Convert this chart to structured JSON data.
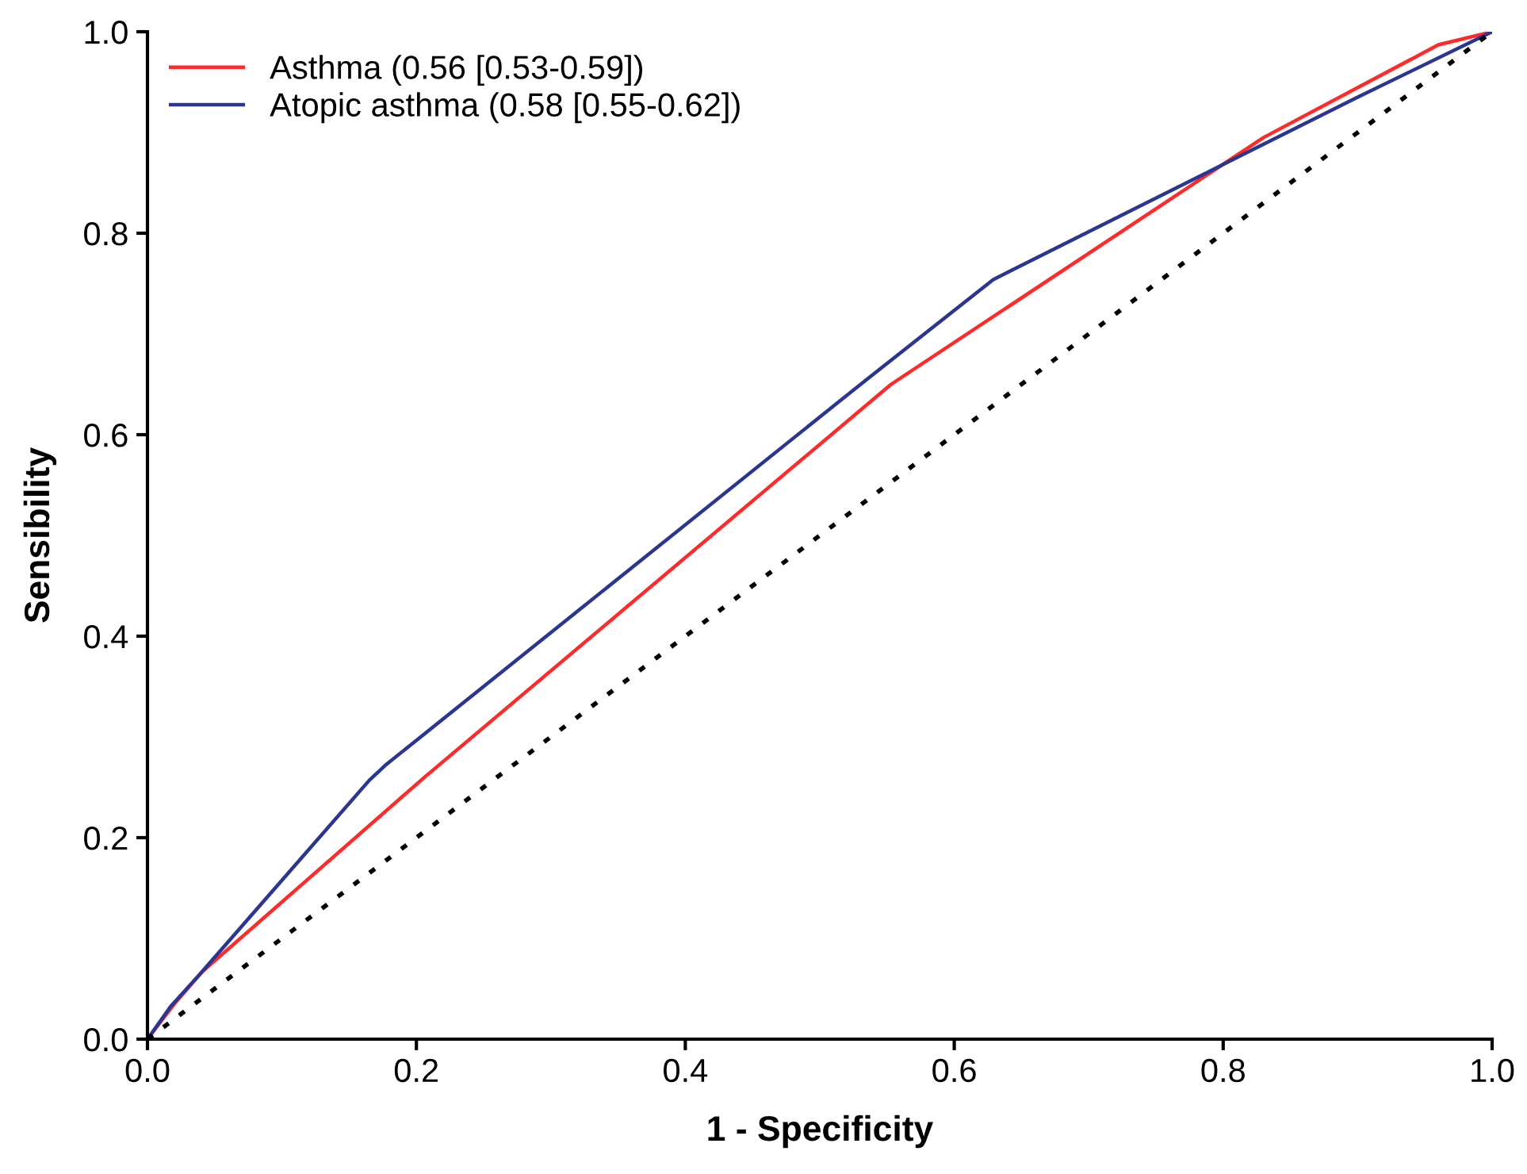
{
  "chart_data": {
    "type": "line",
    "xlabel": "1 - Specificity",
    "ylabel": "Sensibility",
    "xlim": [
      0,
      1
    ],
    "ylim": [
      0,
      1
    ],
    "xticks": [
      {
        "value": 0,
        "label": "0.0"
      },
      0.2,
      0.4,
      0.6,
      0.8,
      {
        "value": 1,
        "label": "1.0"
      }
    ],
    "yticks": [
      {
        "value": 0,
        "label": "0.0"
      },
      0.2,
      0.4,
      0.6,
      0.8,
      {
        "value": 1,
        "label": "1.0"
      }
    ],
    "grid": false,
    "legend": "top left",
    "marker": "none",
    "series": [
      {
        "name": "Asthma (0.56 [0.53-0.59])",
        "color": "#ff2a2a",
        "x": [
          0,
          0.02,
          0.04,
          0.206,
          0.553,
          0.83,
          0.96,
          1
        ],
        "values": [
          0,
          0.035,
          0.066,
          0.26,
          0.65,
          0.895,
          0.987,
          1
        ]
      },
      {
        "name": "Atopic asthma (0.58 [0.55-0.62])",
        "color": "#2b3592",
        "x": [
          0,
          0.017,
          0.04,
          0.165,
          0.177,
          0.535,
          0.629,
          0.81,
          0.9,
          1
        ],
        "values": [
          0,
          0.032,
          0.066,
          0.257,
          0.272,
          0.655,
          0.754,
          0.875,
          0.935,
          1
        ]
      },
      {
        "color": "#000000",
        "line_style": "dotted",
        "x": [
          0,
          1
        ],
        "values": [
          0,
          1
        ]
      }
    ]
  }
}
